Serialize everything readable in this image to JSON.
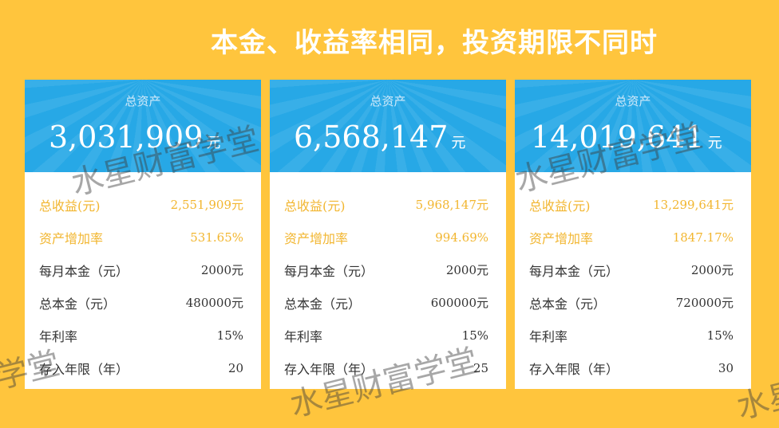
{
  "headline": "本金、收益率相同，投资期限不同时",
  "cards": [
    {
      "label": "总资产",
      "total": "3,031,909",
      "unit": "元",
      "rows": [
        {
          "label": "总收益(元)",
          "value": "2,551,909元"
        },
        {
          "label": "资产增加率",
          "value": "531.65%"
        },
        {
          "label": "每月本金（元）",
          "value": "2000元"
        },
        {
          "label": "总本金（元）",
          "value": "480000元"
        },
        {
          "label": "年利率",
          "value": "15%"
        },
        {
          "label": "存入年限（年）",
          "value": "20"
        }
      ]
    },
    {
      "label": "总资产",
      "total": "6,568,147",
      "unit": "元",
      "rows": [
        {
          "label": "总收益(元)",
          "value": "5,968,147元"
        },
        {
          "label": "资产增加率",
          "value": "994.69%"
        },
        {
          "label": "每月本金（元）",
          "value": "2000元"
        },
        {
          "label": "总本金（元）",
          "value": "600000元"
        },
        {
          "label": "年利率",
          "value": "15%"
        },
        {
          "label": "存入年限（年）",
          "value": "25"
        }
      ]
    },
    {
      "label": "总资产",
      "total": "14,019,641",
      "unit": "元",
      "rows": [
        {
          "label": "总收益(元)",
          "value": "13,299,641元"
        },
        {
          "label": "资产增加率",
          "value": "1847.17%"
        },
        {
          "label": "每月本金（元）",
          "value": "2000元"
        },
        {
          "label": "总本金（元）",
          "value": "720000元"
        },
        {
          "label": "年利率",
          "value": "15%"
        },
        {
          "label": "存入年限（年）",
          "value": "30"
        }
      ]
    }
  ],
  "watermark": {
    "text": "水星财富学堂",
    "partial_left": "学堂",
    "partial_right": "水星"
  },
  "colors": {
    "background": "#ffc53d",
    "card_header": "#27a8e6",
    "highlight_text": "#f2b630"
  }
}
